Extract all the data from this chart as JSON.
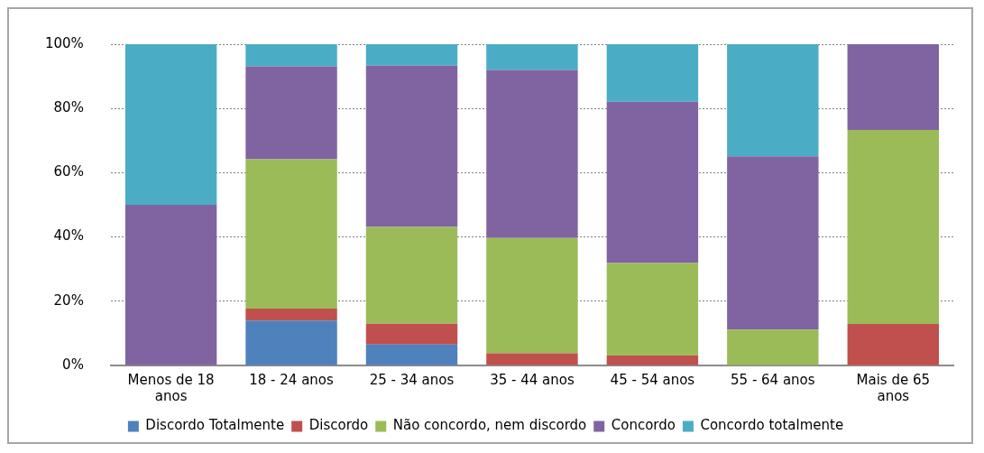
{
  "chart_data": {
    "type": "bar",
    "stacked": true,
    "categories": [
      "Menos de 18 anos",
      "18 - 24 anos",
      "25 - 34 anos",
      "35 - 44 anos",
      "45 - 54 anos",
      "55 - 64 anos",
      "Mais de 65 anos"
    ],
    "series": [
      {
        "name": "Discordo Totalmente",
        "color": "#4f81bd",
        "values": [
          0,
          14,
          6.5,
          0,
          0,
          0,
          0
        ]
      },
      {
        "name": "Discordo",
        "color": "#c0504d",
        "values": [
          0,
          3.7,
          6.5,
          3.8,
          3.1,
          0,
          12.9
        ]
      },
      {
        "name": "Não concordo, nem discordo",
        "color": "#9bbb59",
        "values": [
          0,
          46.5,
          30.1,
          35.9,
          28.8,
          11.2,
          60.4
        ]
      },
      {
        "name": "Concordo",
        "color": "#8064a2",
        "values": [
          50,
          28.9,
          50.2,
          52.3,
          50.2,
          53.9,
          26.7
        ]
      },
      {
        "name": "Concordo totalmente",
        "color": "#4bacc6",
        "values": [
          50,
          6.9,
          6.7,
          8,
          17.9,
          34.9,
          0
        ]
      }
    ],
    "ylim": [
      0,
      100
    ],
    "yticks": [
      {
        "value": 0,
        "label": "0%"
      },
      {
        "value": 20,
        "label": "20%"
      },
      {
        "value": 40,
        "label": "40%"
      },
      {
        "value": 60,
        "label": "60%"
      },
      {
        "value": 80,
        "label": "80%"
      },
      {
        "value": 100,
        "label": "100%"
      }
    ],
    "grid": "y",
    "legend": "bottom"
  }
}
